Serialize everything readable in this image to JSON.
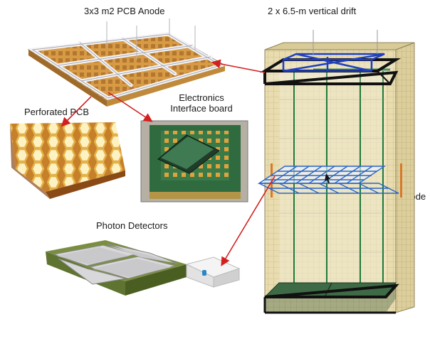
{
  "labels": {
    "anode": "3x3 m2 PCB Anode",
    "drift": "2 x 6.5-m vertical drift",
    "perforated": "Perforated PCB",
    "electronics_line1": "Electronics",
    "electronics_line2": "Interface board",
    "cathode": "Cathode",
    "photon": "Photon Detectors"
  },
  "colors": {
    "cryostat_wall": "#e7d9a8",
    "strip_green": "#1f7a3a",
    "anode_blue": "#1f3fbf",
    "arrow_red": "#d22020",
    "pcb_orange": "#d9913a",
    "hex_gold": "#e3b24a",
    "board_green": "#2b6e3c"
  }
}
